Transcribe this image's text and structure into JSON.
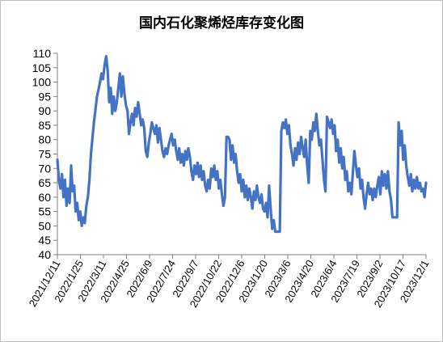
{
  "chart_data": {
    "type": "line",
    "title": "国内石化聚烯烃库存变化图",
    "xlabel": "",
    "ylabel": "",
    "ylim": [
      40,
      110
    ],
    "yticks": [
      40,
      45,
      50,
      55,
      60,
      65,
      70,
      75,
      80,
      85,
      90,
      95,
      100,
      105,
      110
    ],
    "grid": false,
    "legend": "none",
    "line_color": "#4472C4",
    "xticks": [
      "2021/12/11",
      "2022/1/25",
      "2022/3/11",
      "2022/4/25",
      "2022/6/9",
      "2022/7/24",
      "2022/9/7",
      "2022/10/22",
      "2022/12/6",
      "2023/1/20",
      "2023/3/6",
      "2023/4/20",
      "2023/6/4",
      "2023/7/19",
      "2023/9/2",
      "2023/10/17",
      "2023/12/1"
    ],
    "series": [
      {
        "values": [
          [
            0,
            73
          ],
          [
            1,
            66
          ],
          [
            2,
            63
          ],
          [
            3,
            68
          ],
          [
            4,
            60
          ],
          [
            5,
            66
          ],
          [
            6,
            57
          ],
          [
            7,
            63
          ],
          [
            8,
            58
          ],
          [
            9,
            71
          ],
          [
            10,
            62
          ],
          [
            11,
            64
          ],
          [
            12,
            55
          ],
          [
            13,
            58
          ],
          [
            14,
            52
          ],
          [
            15,
            55
          ],
          [
            16,
            50
          ],
          [
            17,
            53
          ],
          [
            18,
            51
          ],
          [
            19,
            57
          ],
          [
            20,
            60
          ],
          [
            21,
            66
          ],
          [
            22,
            75
          ],
          [
            24,
            86
          ],
          [
            26,
            95
          ],
          [
            28,
            100
          ],
          [
            29,
            103
          ],
          [
            30,
            101
          ],
          [
            31,
            106
          ],
          [
            32,
            109
          ],
          [
            33,
            104
          ],
          [
            34,
            93
          ],
          [
            35,
            98
          ],
          [
            36,
            89
          ],
          [
            37,
            95
          ],
          [
            38,
            90
          ],
          [
            39,
            93
          ],
          [
            40,
            98
          ],
          [
            41,
            103
          ],
          [
            42,
            95
          ],
          [
            43,
            102
          ],
          [
            44,
            96
          ],
          [
            45,
            92
          ],
          [
            46,
            90
          ],
          [
            47,
            82
          ],
          [
            48,
            86
          ],
          [
            49,
            89
          ],
          [
            50,
            85
          ],
          [
            51,
            91
          ],
          [
            52,
            88
          ],
          [
            53,
            93
          ],
          [
            54,
            89
          ],
          [
            55,
            85
          ],
          [
            56,
            87
          ],
          [
            57,
            84
          ],
          [
            58,
            76
          ],
          [
            59,
            74
          ],
          [
            60,
            79
          ],
          [
            61,
            82
          ],
          [
            62,
            86
          ],
          [
            63,
            84
          ],
          [
            64,
            82
          ],
          [
            65,
            85
          ],
          [
            66,
            79
          ],
          [
            67,
            84
          ],
          [
            68,
            80
          ],
          [
            69,
            76
          ],
          [
            70,
            74
          ],
          [
            71,
            77
          ],
          [
            72,
            75
          ],
          [
            73,
            78
          ],
          [
            74,
            80
          ],
          [
            75,
            82
          ],
          [
            76,
            78
          ],
          [
            77,
            80
          ],
          [
            78,
            76
          ],
          [
            79,
            73
          ],
          [
            80,
            77
          ],
          [
            81,
            72
          ],
          [
            82,
            75
          ],
          [
            83,
            71
          ],
          [
            84,
            76
          ],
          [
            85,
            73
          ],
          [
            86,
            77
          ],
          [
            87,
            74
          ],
          [
            88,
            69
          ],
          [
            89,
            66
          ],
          [
            90,
            71
          ],
          [
            91,
            68
          ],
          [
            92,
            72
          ],
          [
            93,
            67
          ],
          [
            94,
            71
          ],
          [
            95,
            66
          ],
          [
            96,
            69
          ],
          [
            97,
            64
          ],
          [
            98,
            62
          ],
          [
            99,
            66
          ],
          [
            100,
            63
          ],
          [
            101,
            70
          ],
          [
            102,
            67
          ],
          [
            103,
            71
          ],
          [
            104,
            66
          ],
          [
            105,
            69
          ],
          [
            106,
            63
          ],
          [
            107,
            66
          ],
          [
            108,
            61
          ],
          [
            109,
            57
          ],
          [
            110,
            60
          ],
          [
            111,
            81
          ],
          [
            112,
            81
          ],
          [
            113,
            80
          ],
          [
            114,
            73
          ],
          [
            115,
            78
          ],
          [
            116,
            72
          ],
          [
            117,
            75
          ],
          [
            118,
            69
          ],
          [
            119,
            65
          ],
          [
            120,
            68
          ],
          [
            121,
            62
          ],
          [
            122,
            66
          ],
          [
            123,
            60
          ],
          [
            124,
            64
          ],
          [
            125,
            59
          ],
          [
            126,
            63
          ],
          [
            127,
            60
          ],
          [
            128,
            56
          ],
          [
            129,
            62
          ],
          [
            130,
            59
          ],
          [
            131,
            64
          ],
          [
            132,
            60
          ],
          [
            133,
            58
          ],
          [
            134,
            61
          ],
          [
            135,
            56
          ],
          [
            136,
            55
          ],
          [
            137,
            58
          ],
          [
            138,
            53
          ],
          [
            139,
            64
          ],
          [
            140,
            56
          ],
          [
            141,
            49
          ],
          [
            142,
            52
          ],
          [
            143,
            48
          ],
          [
            144,
            48
          ],
          [
            145,
            48
          ],
          [
            146,
            48
          ],
          [
            147,
            83
          ],
          [
            148,
            86
          ],
          [
            149,
            84
          ],
          [
            150,
            87
          ],
          [
            151,
            82
          ],
          [
            152,
            85
          ],
          [
            153,
            78
          ],
          [
            154,
            75
          ],
          [
            155,
            71
          ],
          [
            156,
            77
          ],
          [
            157,
            73
          ],
          [
            158,
            79
          ],
          [
            159,
            75
          ],
          [
            160,
            81
          ],
          [
            161,
            77
          ],
          [
            162,
            74
          ],
          [
            163,
            80
          ],
          [
            164,
            71
          ],
          [
            165,
            65
          ],
          [
            166,
            83
          ],
          [
            167,
            80
          ],
          [
            168,
            86
          ],
          [
            169,
            83
          ],
          [
            170,
            89
          ],
          [
            171,
            83
          ],
          [
            172,
            78
          ],
          [
            173,
            80
          ],
          [
            174,
            73
          ],
          [
            175,
            66
          ],
          [
            176,
            62
          ],
          [
            177,
            88
          ],
          [
            178,
            86
          ],
          [
            179,
            84
          ],
          [
            180,
            87
          ],
          [
            181,
            82
          ],
          [
            182,
            85
          ],
          [
            183,
            76
          ],
          [
            184,
            80
          ],
          [
            185,
            72
          ],
          [
            186,
            77
          ],
          [
            187,
            70
          ],
          [
            188,
            74
          ],
          [
            189,
            66
          ],
          [
            190,
            69
          ],
          [
            191,
            62
          ],
          [
            192,
            65
          ],
          [
            193,
            61
          ],
          [
            194,
            69
          ],
          [
            195,
            76
          ],
          [
            196,
            71
          ],
          [
            197,
            67
          ],
          [
            198,
            70
          ],
          [
            199,
            63
          ],
          [
            200,
            66
          ],
          [
            201,
            60
          ],
          [
            202,
            56
          ],
          [
            203,
            61
          ],
          [
            204,
            65
          ],
          [
            205,
            61
          ],
          [
            206,
            63
          ],
          [
            207,
            59
          ],
          [
            208,
            63
          ],
          [
            209,
            60
          ],
          [
            210,
            64
          ],
          [
            211,
            67
          ],
          [
            212,
            61
          ],
          [
            213,
            69
          ],
          [
            214,
            64
          ],
          [
            215,
            68
          ],
          [
            216,
            63
          ],
          [
            217,
            69
          ],
          [
            218,
            62
          ],
          [
            219,
            59
          ],
          [
            220,
            53
          ],
          [
            221,
            53
          ],
          [
            222,
            53
          ],
          [
            223,
            53
          ],
          [
            224,
            86
          ],
          [
            225,
            78
          ],
          [
            226,
            83
          ],
          [
            227,
            73
          ],
          [
            228,
            78
          ],
          [
            229,
            71
          ],
          [
            230,
            67
          ],
          [
            231,
            64
          ],
          [
            232,
            68
          ],
          [
            233,
            62
          ],
          [
            234,
            66
          ],
          [
            235,
            63
          ],
          [
            236,
            67
          ],
          [
            237,
            63
          ],
          [
            238,
            65
          ],
          [
            239,
            62
          ],
          [
            240,
            63
          ],
          [
            241,
            60
          ],
          [
            242,
            65
          ]
        ]
      }
    ]
  }
}
